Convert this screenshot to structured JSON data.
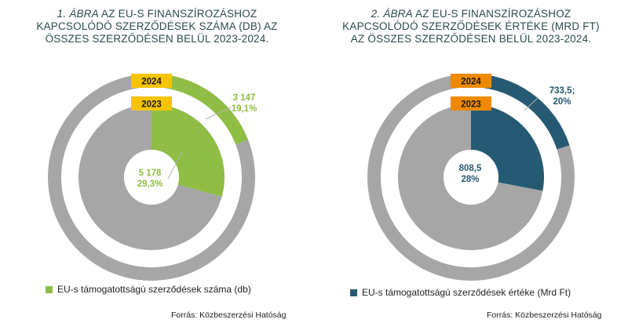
{
  "charts": [
    {
      "title_number": "1. ÁBRA",
      "title_line1": "AZ EU-S FINANSZÍROZÁSHOZ",
      "title_line2": "KAPCSOLÓDÓ SZERZŐDÉSEK SZÁMA (DB) AZ",
      "title_line3": "ÖSSZES SZERZŐDÉSEN BELÜL 2023-2024.",
      "year_outer": "2024",
      "year_inner": "2023",
      "label_outer_value": "3 147",
      "label_outer_pct": "19,1%",
      "label_inner_value": "5 178",
      "label_inner_pct": "29,3%",
      "legend": "EU-s támogatottságú szerződések száma (db)",
      "source": "Forrás: Közbeszerzési Hatóság"
    },
    {
      "title_number": "2. ÁBRA",
      "title_line1": "AZ EU-S FINANSZÍROZÁSHOZ",
      "title_line2": "KAPCSOLÓDÓ SZERZŐDÉSEK ÉRTÉKE (MRD FT)",
      "title_line3": "AZ ÖSSZES SZERZŐDÉSEN BELÜL 2023-2024.",
      "year_outer": "2024",
      "year_inner": "2023",
      "label_outer_value": "733,5;",
      "label_outer_pct": "20%",
      "label_inner_value": "808,5",
      "label_inner_pct": "28%",
      "legend": "EU-s támogatottságú szerződések értéke (Mrd Ft)",
      "source": "Forrás: Közbeszerzési Hatóság"
    }
  ],
  "chart_data": [
    {
      "type": "pie",
      "subtype": "nested-donut",
      "series": [
        {
          "name": "2024",
          "ring": "outer",
          "values": [
            3147,
            13330
          ],
          "shares": [
            19.1,
            80.9
          ],
          "colors": [
            "#8fbd45",
            "#a6a6a6"
          ]
        },
        {
          "name": "2023",
          "ring": "inner",
          "values": [
            5178,
            12495
          ],
          "shares": [
            29.3,
            70.7
          ],
          "colors": [
            "#8fbd45",
            "#a6a6a6"
          ]
        }
      ],
      "categories": [
        "EU-s támogatottságú szerződések száma (db)",
        ""
      ],
      "year_box_color": "#f6c400",
      "rest_color": "#a6a6a6"
    },
    {
      "type": "pie",
      "subtype": "nested-donut",
      "series": [
        {
          "name": "2024",
          "ring": "outer",
          "values": [
            733.5,
            2934
          ],
          "shares": [
            20,
            80
          ],
          "colors": [
            "#265a73",
            "#a6a6a6"
          ]
        },
        {
          "name": "2023",
          "ring": "inner",
          "values": [
            808.5,
            2079
          ],
          "shares": [
            28,
            72
          ],
          "colors": [
            "#265a73",
            "#a6a6a6"
          ]
        }
      ],
      "categories": [
        "EU-s támogatottságú szerződések értéke (Mrd Ft)",
        ""
      ],
      "year_box_color": "#ef8a00",
      "rest_color": "#a6a6a6"
    }
  ]
}
